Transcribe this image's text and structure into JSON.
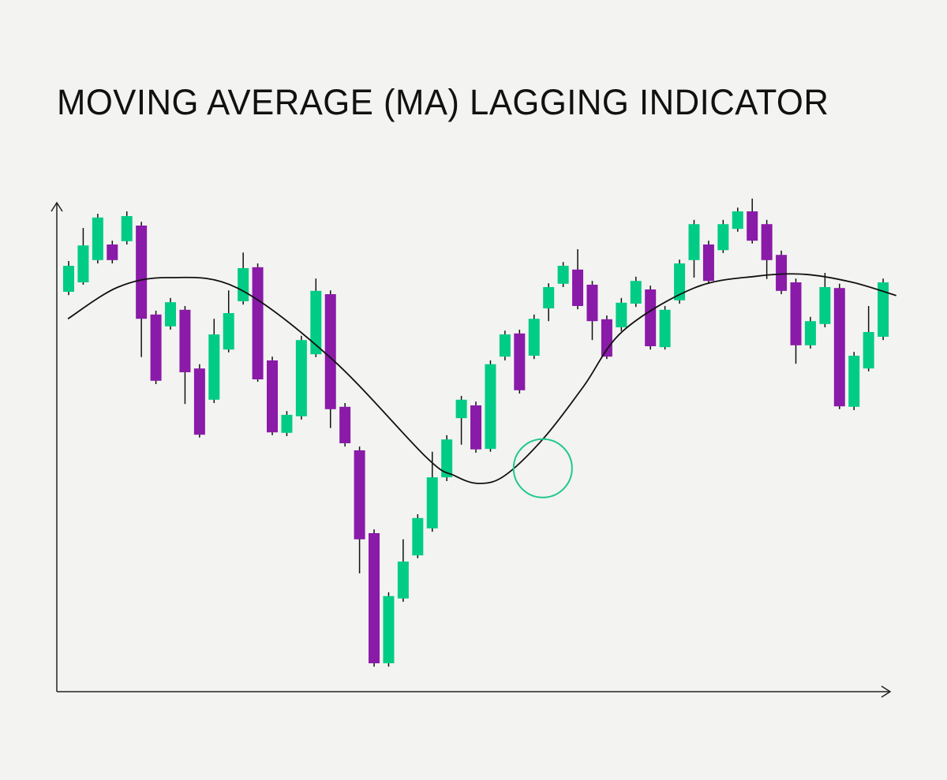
{
  "title": "MOVING AVERAGE (MA) LAGGING INDICATOR",
  "colors": {
    "background": "#f3f3f1",
    "bullish": "#00cc85",
    "bearish": "#8a1aa8",
    "ma_line": "#111111",
    "highlight": "#1fc98a",
    "axis": "#222222"
  },
  "chart_data": {
    "type": "candlestick",
    "title": "MOVING AVERAGE (MA) LAGGING INDICATOR",
    "xlabel": "",
    "ylabel": "",
    "axis_ticks": false,
    "grid": false,
    "candles": [
      [
        84.5,
        91.0,
        83.8,
        90.0
      ],
      [
        86.5,
        98.0,
        86.0,
        94.3
      ],
      [
        91.2,
        101.0,
        90.5,
        100.2
      ],
      [
        94.5,
        95.3,
        90.5,
        91.2
      ],
      [
        95.2,
        101.5,
        94.5,
        100.5
      ],
      [
        98.5,
        99.3,
        70.7,
        78.8
      ],
      [
        79.7,
        80.5,
        65.0,
        65.7
      ],
      [
        77.2,
        83.2,
        76.5,
        82.3
      ],
      [
        80.7,
        81.5,
        60.8,
        67.5
      ],
      [
        68.3,
        69.2,
        53.7,
        54.3
      ],
      [
        61.7,
        78.8,
        61.0,
        75.5
      ],
      [
        72.3,
        84.8,
        71.7,
        80.0
      ],
      [
        82.5,
        92.8,
        81.8,
        89.5
      ],
      [
        89.7,
        90.5,
        65.5,
        66.0
      ],
      [
        70.0,
        70.8,
        54.2,
        54.8
      ],
      [
        54.7,
        59.3,
        54.0,
        58.5
      ],
      [
        58.2,
        75.2,
        57.5,
        74.3
      ],
      [
        71.3,
        87.3,
        70.7,
        84.7
      ],
      [
        84.0,
        84.8,
        55.7,
        59.7
      ],
      [
        60.2,
        61.0,
        51.8,
        52.5
      ],
      [
        51.0,
        51.8,
        25.0,
        32.2
      ],
      [
        33.5,
        34.3,
        5.3,
        6.0
      ],
      [
        6.0,
        21.0,
        5.3,
        20.2
      ],
      [
        19.7,
        32.2,
        19.0,
        27.5
      ],
      [
        28.8,
        37.5,
        28.2,
        36.7
      ],
      [
        34.5,
        50.7,
        33.8,
        45.3
      ],
      [
        45.3,
        54.2,
        44.5,
        53.3
      ],
      [
        57.8,
        62.5,
        52.2,
        61.7
      ],
      [
        60.5,
        61.3,
        50.5,
        51.2
      ],
      [
        51.3,
        70.0,
        50.7,
        69.2
      ],
      [
        70.8,
        76.3,
        70.0,
        75.5
      ],
      [
        75.7,
        76.5,
        63.0,
        63.7
      ],
      [
        71.0,
        79.7,
        70.3,
        78.8
      ],
      [
        81.0,
        86.3,
        78.3,
        85.5
      ],
      [
        86.2,
        90.8,
        85.5,
        90.0
      ],
      [
        89.2,
        93.5,
        80.8,
        81.5
      ],
      [
        86.0,
        86.8,
        74.3,
        78.3
      ],
      [
        78.7,
        79.5,
        70.3,
        70.8
      ],
      [
        77.0,
        83.2,
        76.2,
        82.2
      ],
      [
        82.0,
        87.7,
        81.3,
        86.8
      ],
      [
        85.0,
        85.8,
        72.3,
        73.0
      ],
      [
        72.8,
        81.5,
        72.3,
        80.7
      ],
      [
        82.7,
        91.3,
        82.0,
        90.5
      ],
      [
        91.2,
        99.7,
        87.5,
        98.8
      ],
      [
        94.5,
        95.3,
        86.2,
        86.8
      ],
      [
        93.3,
        99.7,
        92.7,
        98.8
      ],
      [
        97.8,
        102.3,
        97.2,
        101.5
      ],
      [
        101.5,
        104.2,
        94.7,
        95.3
      ],
      [
        98.8,
        99.7,
        87.2,
        91.2
      ],
      [
        92.3,
        93.2,
        84.0,
        84.7
      ],
      [
        86.5,
        87.3,
        69.3,
        73.2
      ],
      [
        73.2,
        79.2,
        72.5,
        78.3
      ],
      [
        77.7,
        88.5,
        77.0,
        85.5
      ],
      [
        85.3,
        86.2,
        59.7,
        60.3
      ],
      [
        60.2,
        71.8,
        59.5,
        71.0
      ],
      [
        68.3,
        81.5,
        67.7,
        76.0
      ],
      [
        75.0,
        87.3,
        74.3,
        86.5
      ]
    ],
    "candle_format": [
      "open",
      "high",
      "low",
      "close"
    ],
    "moving_average": [
      [
        -0.05,
        78.8
      ],
      [
        3.4,
        85.5
      ],
      [
        6.9,
        87.5
      ],
      [
        11.6,
        85.3
      ],
      [
        18.1,
        70.3
      ],
      [
        24.6,
        49.5
      ],
      [
        26.5,
        45.7
      ],
      [
        28.2,
        44.0
      ],
      [
        30.0,
        45.7
      ],
      [
        32.7,
        53.7
      ],
      [
        35.4,
        64.5
      ],
      [
        38.1,
        76.2
      ],
      [
        43.0,
        85.3
      ],
      [
        47.3,
        87.8
      ],
      [
        50.6,
        88.2
      ],
      [
        53.9,
        86.5
      ],
      [
        56.9,
        83.7
      ]
    ],
    "highlight": {
      "shape": "circle",
      "index": 32.6,
      "value": 47.2
    }
  }
}
